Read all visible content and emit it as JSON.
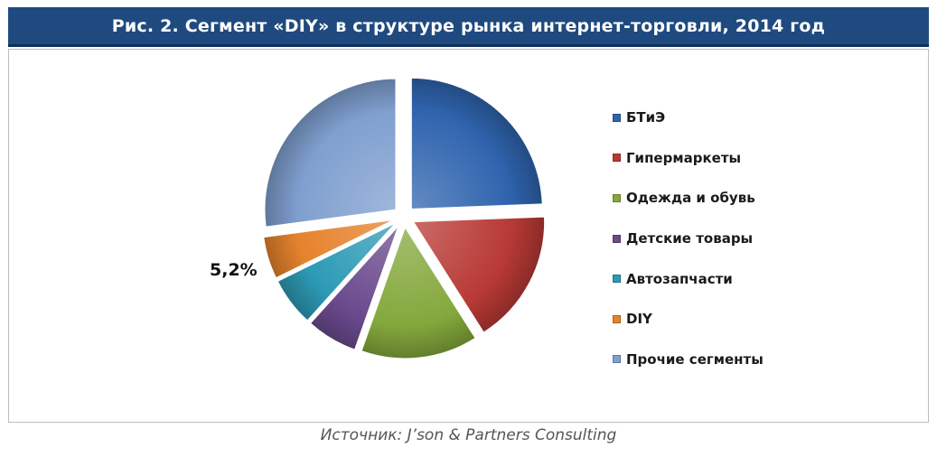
{
  "title": "Рис. 2. Сегмент «DIY» в структуре рынка интернет-торговли, 2014 год",
  "source": "Источник: J’son & Partners Consulting",
  "chart_data": {
    "type": "pie",
    "title": "Рис. 2. Сегмент «DIY» в структуре рынка интернет-торговли, 2014 год",
    "legend_position": "right",
    "data_labels": [
      "5,2%"
    ],
    "series": [
      {
        "categories": [
          "БТиЭ",
          "Гипермаркеты",
          "Одежда и обувь",
          "Детские товары",
          "Автозапчасти",
          "DIY",
          "Прочие сегменты"
        ],
        "values": [
          24.4,
          16.6,
          14.4,
          6.3,
          6.0,
          5.2,
          27.1
        ],
        "colors": [
          "#2f64ae",
          "#b83935",
          "#84a83c",
          "#6a4a8e",
          "#2d9ab5",
          "#e5822c",
          "#7f9fcf"
        ]
      }
    ]
  }
}
